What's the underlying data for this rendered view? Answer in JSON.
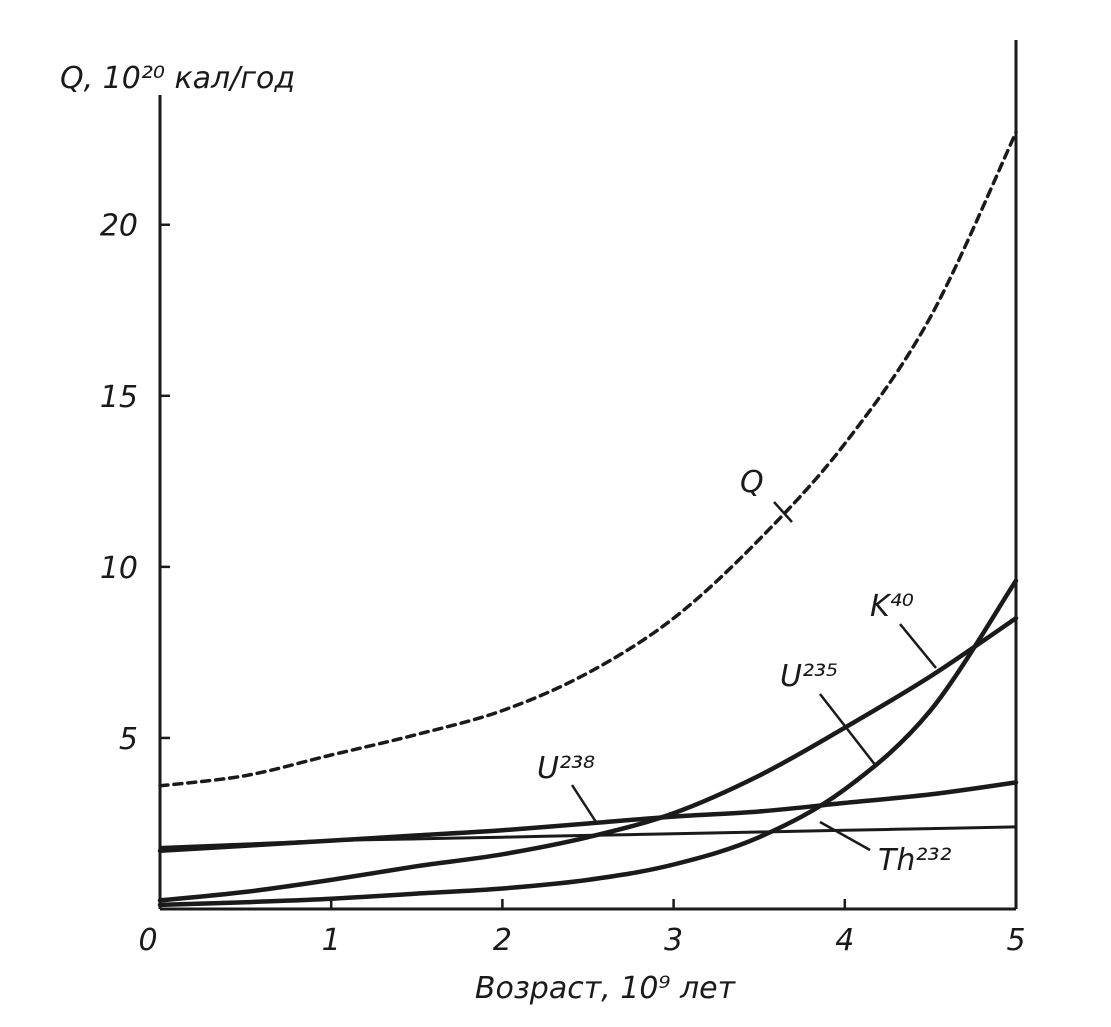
{
  "chart_data": {
    "type": "line",
    "title": "",
    "xlabel": "Возраст, 10⁹ лет",
    "ylabel": "Q, 10²⁰ кал/год",
    "xlim": [
      0,
      5
    ],
    "ylim": [
      0,
      23.5
    ],
    "xticks": [
      "0",
      "1",
      "2",
      "3",
      "4",
      "5"
    ],
    "yticks": [
      "5",
      "10",
      "15",
      "20"
    ],
    "grid": false,
    "legend": "none",
    "series": [
      {
        "name": "Q",
        "style": "dashed",
        "x": [
          0,
          0.5,
          1,
          1.5,
          2,
          2.5,
          3,
          3.5,
          4,
          4.5,
          5
        ],
        "y": [
          3.6,
          3.9,
          4.5,
          5.1,
          5.8,
          6.9,
          8.5,
          10.8,
          13.6,
          17.3,
          22.7
        ]
      },
      {
        "name": "K⁴⁰",
        "style": "solid",
        "x": [
          0,
          0.5,
          1,
          1.5,
          2,
          2.5,
          3,
          3.5,
          4,
          4.5,
          5
        ],
        "y": [
          0.25,
          0.5,
          0.85,
          1.25,
          1.6,
          2.1,
          2.8,
          3.9,
          5.3,
          6.8,
          8.5
        ]
      },
      {
        "name": "U²³⁵",
        "style": "solid",
        "x": [
          0,
          0.5,
          1,
          1.5,
          2,
          2.5,
          3,
          3.5,
          4,
          4.5,
          5
        ],
        "y": [
          0.12,
          0.2,
          0.3,
          0.45,
          0.6,
          0.85,
          1.3,
          2.1,
          3.5,
          5.8,
          9.6
        ]
      },
      {
        "name": "U²³⁸",
        "style": "solid",
        "x": [
          0,
          0.5,
          1,
          1.5,
          2,
          2.5,
          3,
          3.5,
          4,
          4.5,
          5
        ],
        "y": [
          1.7,
          1.85,
          2.0,
          2.15,
          2.3,
          2.5,
          2.7,
          2.85,
          3.1,
          3.35,
          3.7
        ]
      },
      {
        "name": "Th²³²",
        "style": "solid",
        "x": [
          0,
          0.5,
          1,
          1.5,
          2,
          2.5,
          3,
          3.5,
          4,
          4.5,
          5
        ],
        "y": [
          1.8,
          1.9,
          2.0,
          2.05,
          2.1,
          2.15,
          2.2,
          2.25,
          2.3,
          2.35,
          2.4
        ]
      }
    ]
  }
}
